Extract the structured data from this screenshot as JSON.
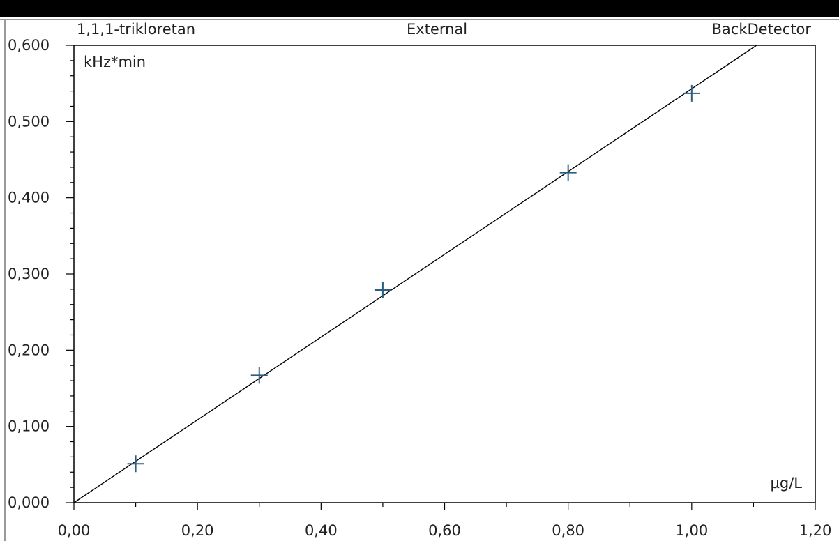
{
  "header": {
    "left": "1,1,1-trikloretan",
    "center": "External",
    "right": "BackDetector"
  },
  "chart_data": {
    "type": "scatter",
    "y_unit_label": "kHz*min",
    "x_unit_label": "µg/L",
    "xlim": [
      0,
      1.2
    ],
    "ylim": [
      0,
      0.6
    ],
    "x_ticks": [
      "0,00",
      "0,20",
      "0,40",
      "0,60",
      "0,80",
      "1,00",
      "1,20"
    ],
    "y_ticks": [
      "0,000",
      "0,100",
      "0,200",
      "0,300",
      "0,400",
      "0,500",
      "0,600"
    ],
    "grid": false,
    "series": [
      {
        "points": [
          {
            "x": 0.1,
            "y": 0.051
          },
          {
            "x": 0.3,
            "y": 0.167
          },
          {
            "x": 0.5,
            "y": 0.279
          },
          {
            "x": 0.8,
            "y": 0.433
          },
          {
            "x": 1.0,
            "y": 0.537
          }
        ],
        "color": "#2a5f80"
      }
    ],
    "fit_line": {
      "slope": 0.543,
      "intercept": 0.0,
      "color": "#000000"
    }
  }
}
